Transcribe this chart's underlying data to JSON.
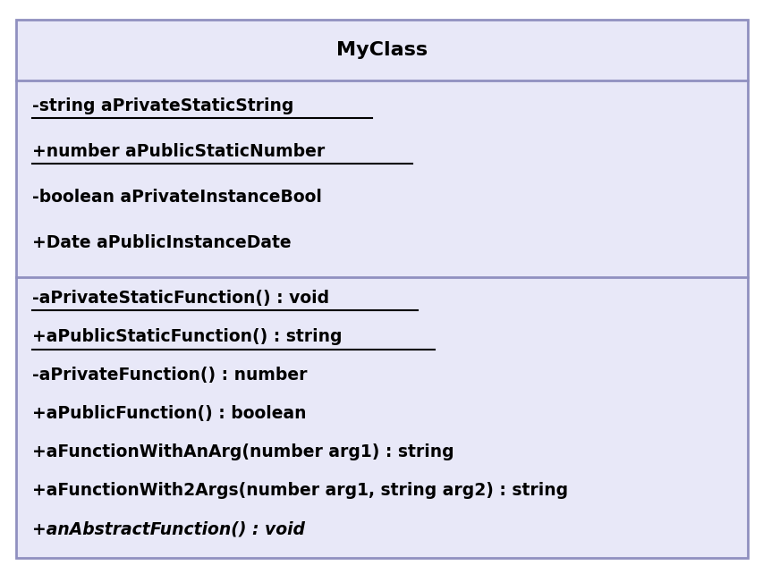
{
  "title": "MyClass",
  "bg_color": "#e8e8f8",
  "border_color": "#9090c0",
  "text_color": "#000000",
  "outer_bg": "#ffffff",
  "title_fontsize": 16,
  "body_fontsize": 13.5,
  "attributes": [
    {
      "text": "-string aPrivateStaticString",
      "static": true,
      "italic": false
    },
    {
      "text": "+number aPublicStaticNumber",
      "static": true,
      "italic": false
    },
    {
      "text": "-boolean aPrivateInstanceBool",
      "static": false,
      "italic": false
    },
    {
      "text": "+Date aPublicInstanceDate",
      "static": false,
      "italic": false
    }
  ],
  "methods": [
    {
      "text": "-aPrivateStaticFunction() : void",
      "static": true,
      "italic": false
    },
    {
      "text": "+aPublicStaticFunction() : string",
      "static": true,
      "italic": false
    },
    {
      "text": "-aPrivateFunction() : number",
      "static": false,
      "italic": false
    },
    {
      "text": "+aPublicFunction() : boolean",
      "static": false,
      "italic": false
    },
    {
      "text": "+aFunctionWithAnArg(number arg1) : string",
      "static": false,
      "italic": false
    },
    {
      "text": "+aFunctionWith2Args(number arg1, string arg2) : string",
      "static": false,
      "italic": false
    },
    {
      "text": "+anAbstractFunction() : void",
      "static": false,
      "italic": true
    }
  ]
}
